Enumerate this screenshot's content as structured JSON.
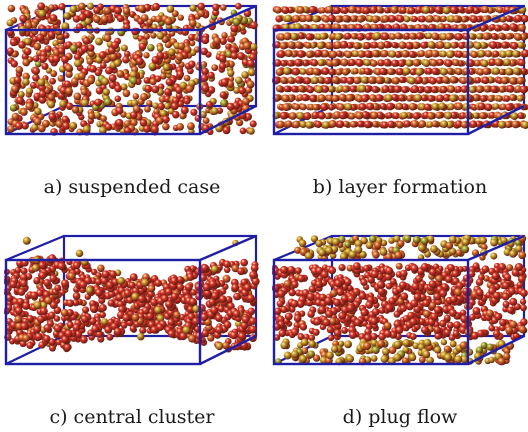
{
  "panels": [
    {
      "id": "a",
      "caption": "a) suspended case",
      "pattern": "suspended"
    },
    {
      "id": "b",
      "caption": "b) layer formation",
      "pattern": "layers"
    },
    {
      "id": "c",
      "caption": "c) central cluster",
      "pattern": "cluster"
    },
    {
      "id": "d",
      "caption": "d) plug flow",
      "pattern": "plug"
    }
  ],
  "colors": {
    "box_edge": "#1f1fa6",
    "particle_red": "#d8322a",
    "particle_orange": "#d9662b",
    "particle_yellow": "#c9a32a",
    "particle_green": "#9aa82a"
  }
}
